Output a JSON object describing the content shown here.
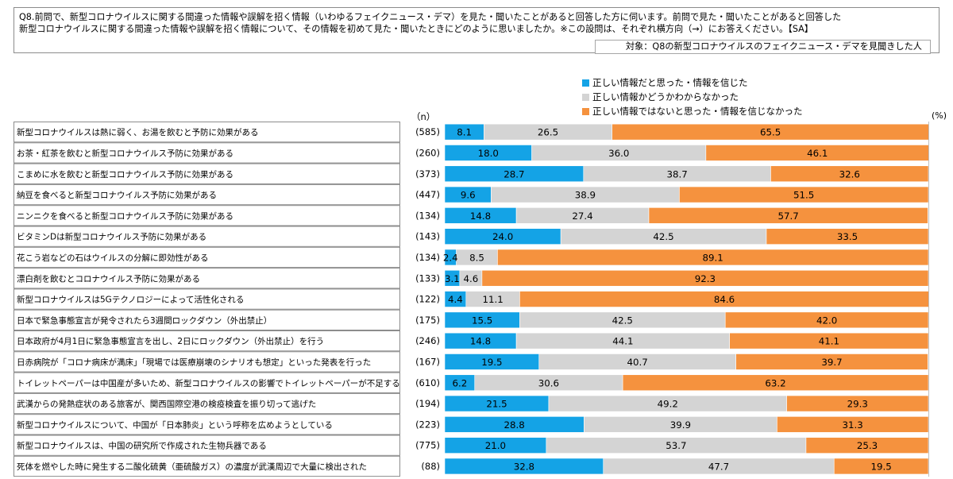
{
  "question": {
    "text_line1": "Q8.前問で、新型コロナウイルスに関する間違った情報や誤解を招く情報（いわゆるフェイクニュース・デマ）を見た・聞いたことがあると回答した方に伺います。前問で見た・聞いたことがあると回答した",
    "text_line2": "新型コロナウイルスに関する間違った情報や誤解を招く情報について、その情報を初めて見た・聞いたときにどのように思いましたか。※この設問は、それぞれ横方向（→）にお答えください。【SA】",
    "target": "対象：Q8の新型コロナウイルスのフェイクニュース・デマを見聞きした人"
  },
  "chart_data": {
    "type": "bar",
    "orientation": "horizontal",
    "stacked": true,
    "unit_label": "(%)",
    "n_header": "（n）",
    "legend_placement": "top-center",
    "xlim": [
      0,
      100
    ],
    "series": [
      {
        "name": "正しい情報だと思った・情報を信じた",
        "color": "#14a3e6",
        "values": [
          8.1,
          18.0,
          28.7,
          9.6,
          14.8,
          24.0,
          2.4,
          3.1,
          4.4,
          15.5,
          14.8,
          19.5,
          6.2,
          21.5,
          28.8,
          21.0,
          32.8
        ],
        "labels": [
          "8.1",
          "18.0",
          "28.7",
          "9.6",
          "14.8",
          "24.0",
          "2.4",
          "3.1",
          "4.4",
          "15.5",
          "14.8",
          "19.5",
          "6.2",
          "21.5",
          "28.8",
          "21.0",
          "32.8"
        ]
      },
      {
        "name": "正しい情報かどうかわからなかった",
        "color": "#d4d4d4",
        "values": [
          26.5,
          36.0,
          38.7,
          38.9,
          27.4,
          42.5,
          8.5,
          4.6,
          11.1,
          42.5,
          44.1,
          40.7,
          30.6,
          49.2,
          39.9,
          53.7,
          47.7
        ],
        "labels": [
          "26.5",
          "36.0",
          "38.7",
          "38.9",
          "27.4",
          "42.5",
          "8.5",
          "4.6",
          "11.1",
          "42.5",
          "44.1",
          "40.7",
          "30.6",
          "49.2",
          "39.9",
          "53.7",
          "47.7"
        ]
      },
      {
        "name": "正しい情報ではないと思った・情報を信じなかった",
        "color": "#f5923e",
        "values": [
          65.5,
          46.1,
          32.6,
          51.5,
          57.7,
          33.5,
          89.1,
          92.3,
          84.6,
          42.0,
          41.1,
          39.7,
          63.2,
          29.3,
          31.3,
          25.3,
          19.5
        ],
        "labels": [
          "65.5",
          "46.1",
          "32.6",
          "51.5",
          "57.7",
          "33.5",
          "89.1",
          "92.3",
          "84.6",
          "42.0",
          "41.1",
          "39.7",
          "63.2",
          "29.3",
          "31.3",
          "25.3",
          "19.5"
        ]
      }
    ],
    "categories": [
      "新型コロナウイルスは熱に弱く、お湯を飲むと予防に効果がある",
      "お茶・紅茶を飲むと新型コロナウイルス予防に効果がある",
      "こまめに水を飲むと新型コロナウイルス予防に効果がある",
      "納豆を食べると新型コロナウイルス予防に効果がある",
      "ニンニクを食べると新型コロナウイルス予防に効果がある",
      "ビタミンDは新型コロナウイルス予防に効果がある",
      "花こう岩などの石はウイルスの分解に即効性がある",
      "漂白剤を飲むとコロナウイルス予防に効果がある",
      "新型コロナウイルスは5Gテクノロジーによって活性化される",
      "日本で緊急事態宣言が発令されたら3週間ロックダウン（外出禁止）",
      "日本政府が4月1日に緊急事態宣言を出し、2日にロックダウン（外出禁止）を行う",
      "日赤病院が「コロナ病床が満床」「現場では医療崩壊のシナリオも想定」といった発表を行った",
      "トイレットペーパーは中国産が多いため、新型コロナウイルスの影響でトイレットペーパーが不足する",
      "武漢からの発熱症状のある旅客が、関西国際空港の検疫検査を振り切って逃げた",
      "新型コロナウイルスについて、中国が「日本肺炎」という呼称を広めようとしている",
      "新型コロナウイルスは、中国の研究所で作成された生物兵器である",
      "死体を燃やした時に発生する二酸化硫黄（亜硫酸ガス）の濃度が武漢周辺で大量に検出された"
    ],
    "n": [
      "(585)",
      "(260)",
      "(373)",
      "(447)",
      "(134)",
      "(143)",
      "(134)",
      "(133)",
      "(122)",
      "(175)",
      "(246)",
      "(167)",
      "(610)",
      "(194)",
      "(223)",
      "(775)",
      "(88)"
    ]
  }
}
